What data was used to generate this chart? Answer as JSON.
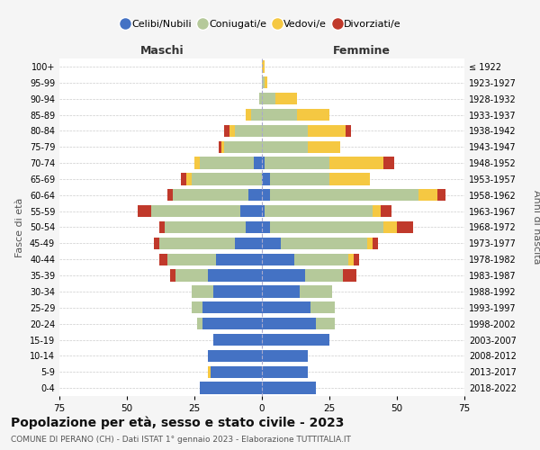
{
  "age_groups": [
    "0-4",
    "5-9",
    "10-14",
    "15-19",
    "20-24",
    "25-29",
    "30-34",
    "35-39",
    "40-44",
    "45-49",
    "50-54",
    "55-59",
    "60-64",
    "65-69",
    "70-74",
    "75-79",
    "80-84",
    "85-89",
    "90-94",
    "95-99",
    "100+"
  ],
  "birth_years": [
    "2018-2022",
    "2013-2017",
    "2008-2012",
    "2003-2007",
    "1998-2002",
    "1993-1997",
    "1988-1992",
    "1983-1987",
    "1978-1982",
    "1973-1977",
    "1968-1972",
    "1963-1967",
    "1958-1962",
    "1953-1957",
    "1948-1952",
    "1943-1947",
    "1938-1942",
    "1933-1937",
    "1928-1932",
    "1923-1927",
    "≤ 1922"
  ],
  "maschi": {
    "celibe": [
      23,
      19,
      20,
      18,
      22,
      22,
      18,
      20,
      17,
      10,
      6,
      8,
      5,
      0,
      3,
      0,
      0,
      0,
      0,
      0,
      0
    ],
    "coniugato": [
      0,
      0,
      0,
      0,
      2,
      4,
      8,
      12,
      18,
      28,
      30,
      33,
      28,
      26,
      20,
      14,
      10,
      4,
      1,
      0,
      0
    ],
    "vedovo": [
      0,
      1,
      0,
      0,
      0,
      0,
      0,
      0,
      0,
      0,
      0,
      0,
      0,
      2,
      2,
      1,
      2,
      2,
      0,
      0,
      0
    ],
    "divorziato": [
      0,
      0,
      0,
      0,
      0,
      0,
      0,
      2,
      3,
      2,
      2,
      5,
      2,
      2,
      0,
      1,
      2,
      0,
      0,
      0,
      0
    ]
  },
  "femmine": {
    "nubile": [
      20,
      17,
      17,
      25,
      20,
      18,
      14,
      16,
      12,
      7,
      3,
      1,
      3,
      3,
      1,
      0,
      0,
      0,
      0,
      0,
      0
    ],
    "coniugata": [
      0,
      0,
      0,
      0,
      7,
      9,
      12,
      14,
      20,
      32,
      42,
      40,
      55,
      22,
      24,
      17,
      17,
      13,
      5,
      1,
      0
    ],
    "vedova": [
      0,
      0,
      0,
      0,
      0,
      0,
      0,
      0,
      2,
      2,
      5,
      3,
      7,
      15,
      20,
      12,
      14,
      12,
      8,
      1,
      1
    ],
    "divorziata": [
      0,
      0,
      0,
      0,
      0,
      0,
      0,
      5,
      2,
      2,
      6,
      4,
      3,
      0,
      4,
      0,
      2,
      0,
      0,
      0,
      0
    ]
  },
  "colors": {
    "celibe": "#4472c4",
    "coniugato": "#b5c99a",
    "vedovo": "#f5c842",
    "divorziato": "#c0392b"
  },
  "xlim": 75,
  "title": "Popolazione per età, sesso e stato civile - 2023",
  "subtitle": "COMUNE DI PERANO (CH) - Dati ISTAT 1° gennaio 2023 - Elaborazione TUTTITALIA.IT",
  "xlabel_left": "Maschi",
  "xlabel_right": "Femmine",
  "ylabel_left": "Fasce di età",
  "ylabel_right": "Anni di nascita",
  "legend_labels": [
    "Celibi/Nubili",
    "Coniugati/e",
    "Vedovi/e",
    "Divorziati/e"
  ],
  "background_color": "#f5f5f5",
  "plot_background": "#ffffff"
}
